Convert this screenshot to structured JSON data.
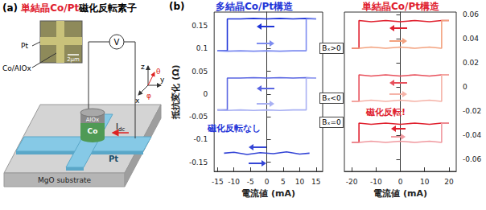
{
  "panel_a": {
    "label": "(a)",
    "title_highlight": "単結晶Co/Pt",
    "title_rest": "磁化反転素子",
    "inset_labels": [
      "Pt",
      "Co/AlOx"
    ],
    "scale": "2μm",
    "cap": "AlOx",
    "pillar": "Co",
    "electrode": "Pt",
    "substrate": "MgO substrate",
    "voltmeter": "V",
    "current": {
      "main": "I",
      "sub": "dc"
    },
    "axes": [
      "x",
      "y",
      "z"
    ],
    "angles": [
      "θ",
      "φ"
    ]
  },
  "panel_b": {
    "label": "(b)",
    "ylabel": "抵抗変化 (Ω)",
    "field_labels": [
      "Bₓ>0",
      "Bₓ<0",
      "Bₓ=0"
    ]
  },
  "chart_data": [
    {
      "type": "line",
      "title": "多結晶Co/Pt構造",
      "color": "#1f35d8",
      "annotation": "磁化反転なし",
      "xlabel": "電流値 (mA)",
      "xlim": [
        -16,
        17
      ],
      "xticks": [
        -15,
        -10,
        -5,
        0,
        5,
        10,
        15
      ],
      "ylim": [
        -0.17,
        0.18
      ],
      "yticks": [
        0.15,
        0.1,
        0.05,
        0,
        -0.05,
        -0.1,
        -0.15
      ],
      "grid": false,
      "series": [
        {
          "color": "#1f35d8",
          "x": [
            15,
            12,
            8,
            4,
            0,
            -4,
            -8,
            -12,
            -12,
            -15
          ],
          "values": [
            0.165,
            0.166,
            0.165,
            0.166,
            0.165,
            0.166,
            0.165,
            0.165,
            0.095,
            0.095
          ]
        },
        {
          "color": "#7d8cf0",
          "x": [
            -15,
            -12,
            -8,
            -4,
            0,
            4,
            8,
            12,
            12,
            15
          ],
          "values": [
            0.095,
            0.094,
            0.095,
            0.094,
            0.095,
            0.094,
            0.095,
            0.095,
            0.165,
            0.165
          ]
        },
        {
          "color": "#5a66e2",
          "x": [
            15,
            12,
            8,
            4,
            0,
            -4,
            -8,
            -12,
            -12,
            -15
          ],
          "values": [
            0.035,
            0.036,
            0.035,
            0.036,
            0.035,
            0.036,
            0.035,
            0.035,
            -0.035,
            -0.035
          ]
        },
        {
          "color": "#a9b1f3",
          "x": [
            -15,
            -12,
            -8,
            -4,
            0,
            4,
            8,
            12,
            12,
            15
          ],
          "values": [
            -0.035,
            -0.036,
            -0.035,
            -0.036,
            -0.035,
            -0.036,
            -0.035,
            -0.035,
            0.035,
            0.035
          ]
        },
        {
          "color": "#3546d6",
          "x": [
            -13,
            -10,
            -6,
            -2,
            2,
            6,
            10,
            13
          ],
          "values": [
            -0.13,
            -0.128,
            -0.133,
            -0.129,
            -0.131,
            -0.127,
            -0.132,
            -0.13
          ]
        }
      ]
    },
    {
      "type": "line",
      "title": "単結晶Co/Pt構造",
      "color": "#e0202e",
      "annotation": "磁化反転!",
      "xlabel": "電流値 (mA)",
      "xlim": [
        -23,
        23
      ],
      "xticks": [
        -20,
        -10,
        0,
        10,
        20
      ],
      "ylim": [
        -0.07,
        0.062
      ],
      "yticks": [
        0.06,
        0.04,
        0.02,
        0,
        -0.02,
        -0.04,
        -0.06
      ],
      "grid": false,
      "series": [
        {
          "color": "#e0202e",
          "x": [
            20,
            17,
            12,
            6,
            0,
            -6,
            -12,
            -17,
            -17,
            -20
          ],
          "values": [
            0.055,
            0.055,
            0.054,
            0.055,
            0.054,
            0.055,
            0.054,
            0.055,
            0.032,
            0.032
          ]
        },
        {
          "color": "#f3a27f",
          "x": [
            -20,
            -17,
            -12,
            -6,
            0,
            6,
            12,
            17,
            17,
            20
          ],
          "values": [
            0.032,
            0.032,
            0.033,
            0.032,
            0.033,
            0.032,
            0.033,
            0.032,
            0.055,
            0.055
          ]
        },
        {
          "color": "#e8505c",
          "x": [
            20,
            17,
            12,
            6,
            0,
            -6,
            -12,
            -17,
            -17,
            -20
          ],
          "values": [
            0.01,
            0.01,
            0.009,
            0.01,
            0.009,
            0.01,
            0.009,
            0.01,
            -0.012,
            -0.012
          ]
        },
        {
          "color": "#f5b3a8",
          "x": [
            -20,
            -17,
            -12,
            -6,
            0,
            6,
            12,
            17,
            17,
            20
          ],
          "values": [
            -0.012,
            -0.012,
            -0.011,
            -0.012,
            -0.011,
            -0.012,
            -0.011,
            -0.012,
            0.01,
            0.01
          ]
        },
        {
          "color": "#e0202e",
          "x": [
            20,
            17,
            12,
            6,
            0,
            -6,
            -12,
            -17,
            -17,
            -20
          ],
          "values": [
            -0.03,
            -0.03,
            -0.031,
            -0.03,
            -0.031,
            -0.03,
            -0.031,
            -0.03,
            -0.046,
            -0.046
          ]
        },
        {
          "color": "#f09aa0",
          "x": [
            -20,
            -17,
            -12,
            -6,
            0,
            6,
            12,
            17,
            17,
            20
          ],
          "values": [
            -0.046,
            -0.046,
            -0.045,
            -0.046,
            -0.045,
            -0.046,
            -0.045,
            -0.046,
            -0.03,
            -0.03
          ]
        }
      ]
    }
  ]
}
